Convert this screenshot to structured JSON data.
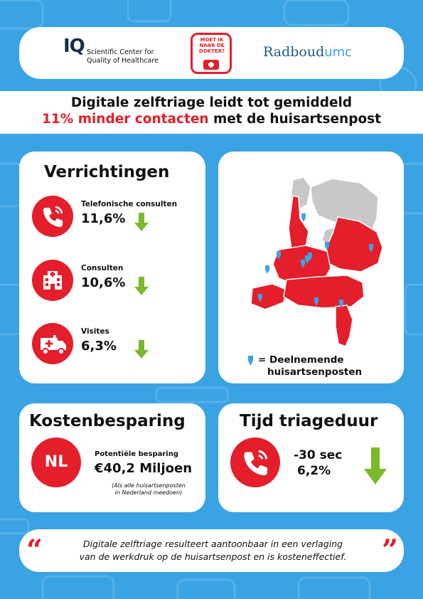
{
  "header": {
    "iq_mark": "IQ",
    "iq_line1": "Scientific Center for",
    "iq_line2": "Quality of Healthcare",
    "moet_logo_text": "MOET IK NAAR DE DOKTER?",
    "radboud_main": "Radboud",
    "radboud_suffix": "umc"
  },
  "headline": {
    "line1": "Digitale zelftriage leidt tot gemiddeld",
    "line2_highlight": "11% minder contacten",
    "line2_rest": " met de huisartsenpost"
  },
  "verrichtingen": {
    "title": "Verrichtingen",
    "items": [
      {
        "label": "Telefonische consulten",
        "value": "11,6%",
        "icon": "phone-icon"
      },
      {
        "label": "Consulten",
        "value": "10,6%",
        "icon": "hospital-icon"
      },
      {
        "label": "Visites",
        "value": "6,3%",
        "icon": "ambulance-icon"
      }
    ]
  },
  "map": {
    "legend_line1": "= Deelnemende",
    "legend_line2": "huisartsenposten"
  },
  "kosten": {
    "title": "Kostenbesparing",
    "badge": "NL",
    "label": "Potentiële besparing",
    "value": "€40,2 Miljoen",
    "note_line1": "(Als alle huisartsenposten",
    "note_line2": "in Nederland meedoen)"
  },
  "tijd": {
    "title": "Tijd triageduur",
    "value1": "-30 sec",
    "value2": "6,2%"
  },
  "quote": {
    "open": "“",
    "close": "”",
    "line1": "Digitale zelftriage resulteert aantoonbaar in een verlaging",
    "line2": "van de werkdruk op de huisartsenpost en is kosteneffectief."
  },
  "colors": {
    "background": "#3aa3e3",
    "accent_red": "#e41e2b",
    "arrow_green": "#7ab929",
    "map_grey": "#c8c8c8"
  }
}
